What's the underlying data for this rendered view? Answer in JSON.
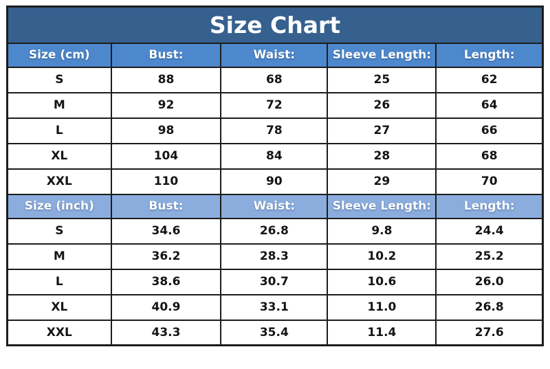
{
  "title": "Size Chart",
  "colors": {
    "title_bg": "#36618f",
    "header_cm_bg": "#4d88cd",
    "header_inch_bg": "#8badde",
    "border": "#1c1c1c",
    "header_text": "#ffffff",
    "body_text": "#141414"
  },
  "chart_data": [
    {
      "type": "table",
      "title": "Size Chart",
      "unit": "cm",
      "columns": [
        "Size (cm)",
        "Bust:",
        "Waist:",
        "Sleeve Length:",
        "Length:"
      ],
      "rows": [
        [
          "S",
          "88",
          "68",
          "25",
          "62"
        ],
        [
          "M",
          "92",
          "72",
          "26",
          "64"
        ],
        [
          "L",
          "98",
          "78",
          "27",
          "66"
        ],
        [
          "XL",
          "104",
          "84",
          "28",
          "68"
        ],
        [
          "XXL",
          "110",
          "90",
          "29",
          "70"
        ]
      ]
    },
    {
      "type": "table",
      "title": "Size Chart",
      "unit": "inch",
      "columns": [
        "Size (inch)",
        "Bust:",
        "Waist:",
        "Sleeve Length:",
        "Length:"
      ],
      "rows": [
        [
          "S",
          "34.6",
          "26.8",
          "9.8",
          "24.4"
        ],
        [
          "M",
          "36.2",
          "28.3",
          "10.2",
          "25.2"
        ],
        [
          "L",
          "38.6",
          "30.7",
          "10.6",
          "26.0"
        ],
        [
          "XL",
          "40.9",
          "33.1",
          "11.0",
          "26.8"
        ],
        [
          "XXL",
          "43.3",
          "35.4",
          "11.4",
          "27.6"
        ]
      ]
    }
  ]
}
